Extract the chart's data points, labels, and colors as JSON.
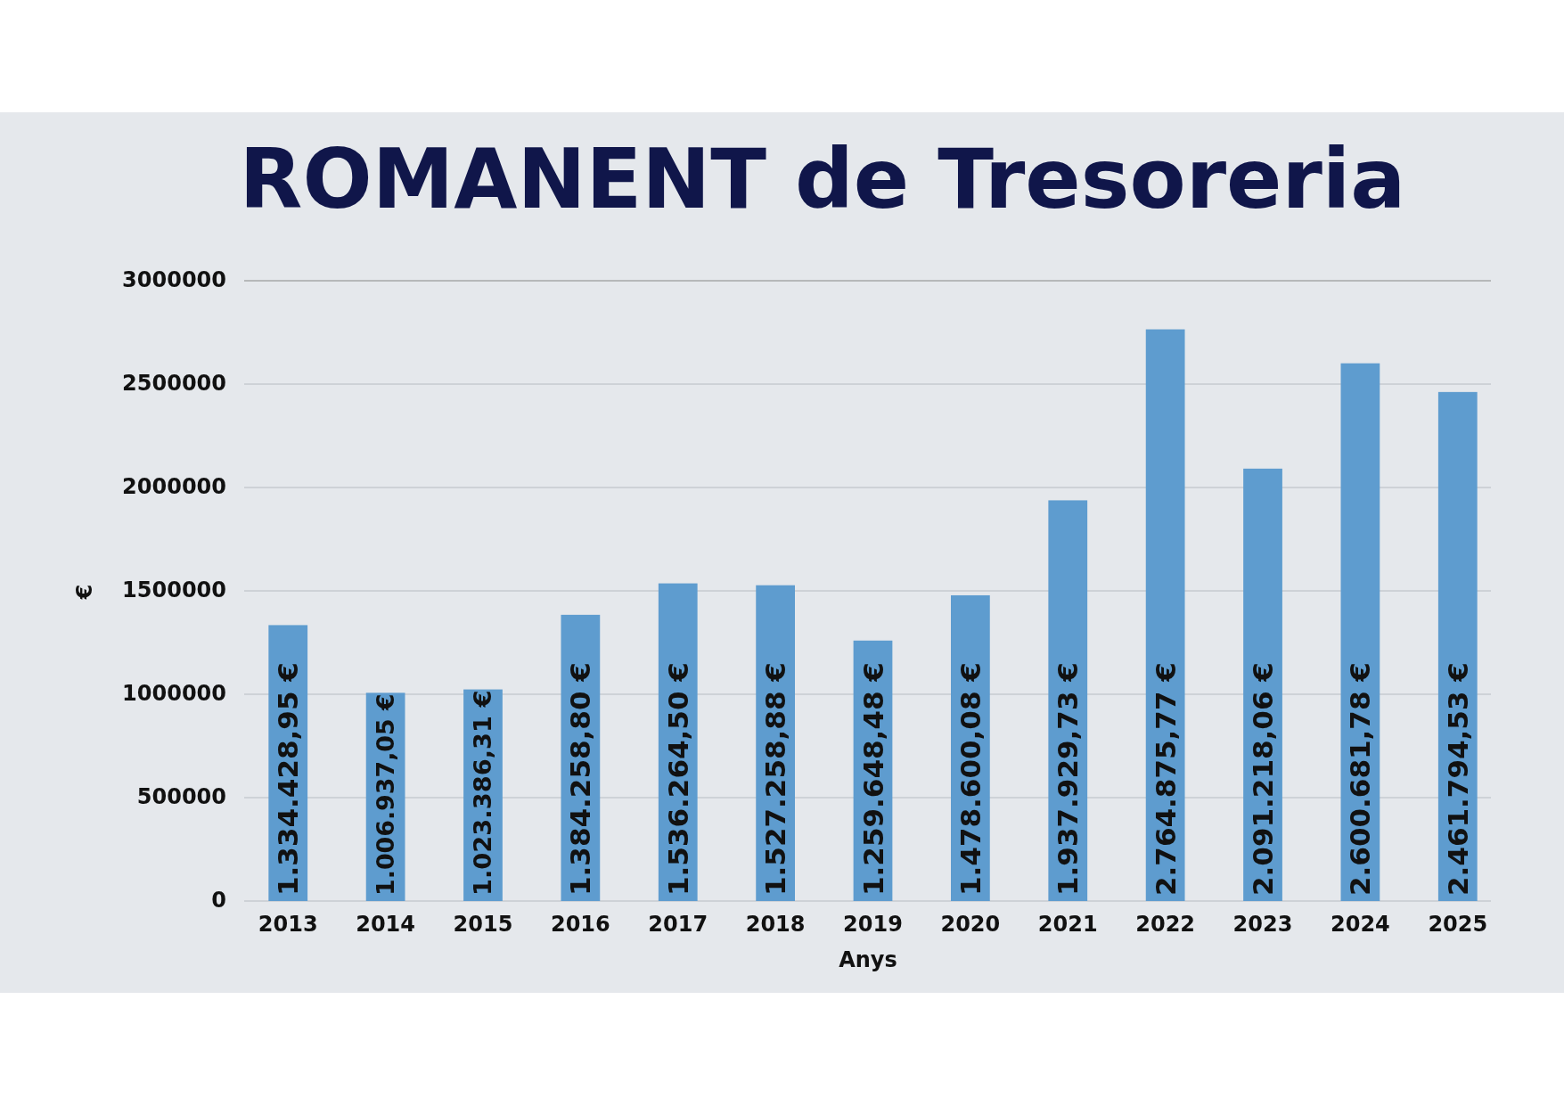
{
  "chart_data": {
    "type": "bar",
    "title": "ROMANENT de Tresoreria",
    "xlabel": "Anys",
    "ylabel": "€",
    "categories": [
      "2013",
      "2014",
      "2015",
      "2016",
      "2017",
      "2018",
      "2019",
      "2020",
      "2021",
      "2022",
      "2023",
      "2024",
      "2025"
    ],
    "values": [
      1334428.95,
      1006937.05,
      1023386.31,
      1384258.8,
      1536264.5,
      1527258.88,
      1259648.48,
      1478600.08,
      1937929.73,
      2764875.77,
      2091218.06,
      2600681.78,
      2461794.53
    ],
    "value_labels": [
      "1.334.428,95 €",
      "1.006.937,05 €",
      "1.023.386,31 €",
      "1.384.258,80 €",
      "1.536.264,50 €",
      "1.527.258,88 €",
      "1.259.648,48 €",
      "1.478.600,08 €",
      "1.937.929,73 €",
      "2.764.875,77 €",
      "2.091.218,06 €",
      "2.600.681,78 €",
      "2.461.794,53 €"
    ],
    "color": "#5e9ccf",
    "ylim": [
      0,
      3000000
    ],
    "yticks": [
      0,
      500000,
      1000000,
      1500000,
      2000000,
      2500000,
      3000000
    ],
    "grid": "y"
  }
}
